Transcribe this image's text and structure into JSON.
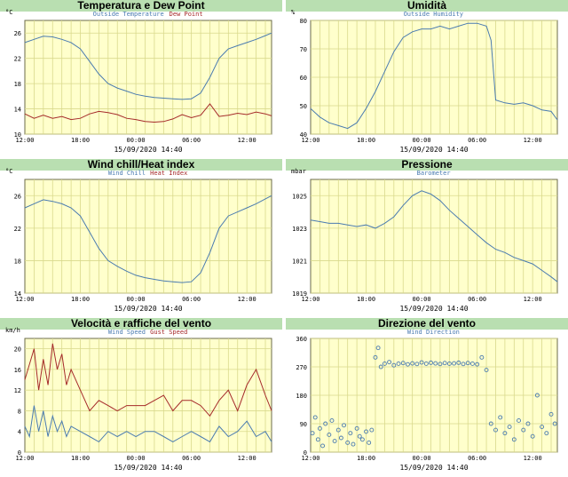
{
  "panels": [
    {
      "title": "Temperatura e Dew Point"
    },
    {
      "title": "Umidità"
    },
    {
      "title": "Wind chill/Heat index"
    },
    {
      "title": "Pressione"
    },
    {
      "title": "Velocità e raffiche del vento"
    },
    {
      "title": "Direzione del vento"
    }
  ],
  "chart_data": [
    {
      "type": "line",
      "title": "Temperatura e Dew Point",
      "ylabel": "°C",
      "legend": [
        "Outside Temperature",
        "Dew Point"
      ],
      "xlabel": "15/09/2020 14:40",
      "x_ticks": [
        "12:00",
        "18:00",
        "00:00",
        "06:00",
        "12:00"
      ],
      "y_ticks": [
        10,
        14,
        18,
        22,
        26
      ],
      "xlim": [
        0,
        26.67
      ],
      "ylim": [
        10,
        28
      ],
      "series": [
        {
          "name": "Outside Temperature",
          "color": "#4a7bb0",
          "x": [
            0,
            1,
            2,
            3,
            4,
            5,
            6,
            7,
            8,
            9,
            10,
            11,
            12,
            13,
            14,
            15,
            16,
            17,
            18,
            19,
            20,
            21,
            22,
            23,
            24,
            25,
            26,
            26.67
          ],
          "y": [
            24.5,
            25,
            25.5,
            25.4,
            25,
            24.5,
            23.5,
            21.5,
            19.5,
            18,
            17.3,
            16.8,
            16.3,
            16,
            15.8,
            15.7,
            15.6,
            15.5,
            15.6,
            16.5,
            19,
            22,
            23.5,
            24,
            24.5,
            25,
            25.6,
            26
          ]
        },
        {
          "name": "Dew Point",
          "color": "#a52a2a",
          "x": [
            0,
            1,
            2,
            3,
            4,
            5,
            6,
            7,
            8,
            9,
            10,
            11,
            12,
            13,
            14,
            15,
            16,
            17,
            18,
            19,
            20,
            21,
            22,
            23,
            24,
            25,
            26,
            26.67
          ],
          "y": [
            13.2,
            12.5,
            13,
            12.5,
            12.8,
            12.3,
            12.5,
            13.2,
            13.6,
            13.4,
            13.1,
            12.5,
            12.3,
            12,
            11.9,
            12,
            12.4,
            13.1,
            12.6,
            13,
            14.8,
            12.8,
            13,
            13.3,
            13.1,
            13.5,
            13.2,
            12.9
          ]
        }
      ]
    },
    {
      "type": "line",
      "title": "Umidità",
      "ylabel": "%",
      "legend": [
        "Outside Humidity"
      ],
      "xlabel": "15/09/2020 14:40",
      "x_ticks": [
        "12:00",
        "18:00",
        "00:00",
        "06:00",
        "12:00"
      ],
      "y_ticks": [
        40,
        50,
        60,
        70,
        80
      ],
      "xlim": [
        0,
        26.67
      ],
      "ylim": [
        40,
        80
      ],
      "series": [
        {
          "name": "Outside Humidity",
          "color": "#4a7bb0",
          "x": [
            0,
            1,
            2,
            3,
            4,
            5,
            6,
            7,
            8,
            9,
            10,
            11,
            12,
            13,
            14,
            15,
            16,
            17,
            18,
            19,
            19.5,
            20,
            21,
            22,
            23,
            24,
            25,
            26,
            26.67
          ],
          "y": [
            49,
            46,
            44,
            43,
            42,
            44,
            49,
            55,
            62,
            69,
            74,
            76,
            77,
            77,
            78,
            77,
            78,
            79,
            79,
            78,
            73,
            52,
            51,
            50.5,
            51,
            50,
            48.5,
            48,
            45
          ]
        }
      ]
    },
    {
      "type": "line",
      "title": "Wind chill/Heat index",
      "ylabel": "°C",
      "legend": [
        "Wind Chill",
        "Heat Index"
      ],
      "xlabel": "15/09/2020 14:40",
      "x_ticks": [
        "12:00",
        "18:00",
        "00:00",
        "06:00",
        "12:00"
      ],
      "y_ticks": [
        14,
        18,
        22,
        26
      ],
      "xlim": [
        0,
        26.67
      ],
      "ylim": [
        14,
        28
      ],
      "series": [
        {
          "name": "Wind Chill",
          "color": "#4a7bb0",
          "x": [
            0,
            1,
            2,
            3,
            4,
            5,
            6,
            7,
            8,
            9,
            10,
            11,
            12,
            13,
            14,
            15,
            16,
            17,
            18,
            19,
            20,
            21,
            22,
            23,
            24,
            25,
            26,
            26.67
          ],
          "y": [
            24.5,
            25,
            25.5,
            25.3,
            25,
            24.5,
            23.5,
            21.5,
            19.5,
            18,
            17.3,
            16.7,
            16.2,
            15.9,
            15.7,
            15.5,
            15.4,
            15.3,
            15.4,
            16.5,
            19,
            22,
            23.5,
            24,
            24.5,
            25,
            25.6,
            26
          ]
        }
      ]
    },
    {
      "type": "line",
      "title": "Pressione",
      "ylabel": "mbar",
      "legend": [
        "Barometer"
      ],
      "xlabel": "15/09/2020 14:40",
      "x_ticks": [
        "12:00",
        "18:00",
        "00:00",
        "06:00",
        "12:00"
      ],
      "y_ticks": [
        1019,
        1021,
        1023,
        1025
      ],
      "xlim": [
        0,
        26.67
      ],
      "ylim": [
        1019,
        1026
      ],
      "series": [
        {
          "name": "Barometer",
          "color": "#4a7bb0",
          "x": [
            0,
            1,
            2,
            3,
            4,
            5,
            6,
            7,
            8,
            9,
            10,
            11,
            12,
            13,
            14,
            15,
            16,
            17,
            18,
            19,
            20,
            21,
            22,
            23,
            24,
            25,
            26,
            26.67
          ],
          "y": [
            1023.5,
            1023.4,
            1023.3,
            1023.3,
            1023.2,
            1023.1,
            1023.2,
            1023,
            1023.3,
            1023.7,
            1024.4,
            1025,
            1025.3,
            1025.1,
            1024.7,
            1024.1,
            1023.6,
            1023.1,
            1022.6,
            1022.1,
            1021.7,
            1021.5,
            1021.2,
            1021,
            1020.8,
            1020.4,
            1020,
            1019.7
          ]
        }
      ]
    },
    {
      "type": "line",
      "title": "Velocità e raffiche del vento",
      "ylabel": "km/h",
      "legend": [
        "Wind Speed",
        "Gust Speed"
      ],
      "xlabel": "15/09/2020 14:40",
      "x_ticks": [
        "12:00",
        "18:00",
        "00:00",
        "06:00",
        "12:00"
      ],
      "y_ticks": [
        0,
        4,
        8,
        12,
        16,
        20
      ],
      "xlim": [
        0,
        26.67
      ],
      "ylim": [
        0,
        22
      ],
      "series": [
        {
          "name": "Wind Speed",
          "color": "#4a7bb0",
          "x": [
            0,
            0.5,
            1,
            1.5,
            2,
            2.5,
            3,
            3.5,
            4,
            4.5,
            5,
            6,
            7,
            8,
            9,
            10,
            11,
            12,
            13,
            14,
            15,
            16,
            17,
            18,
            19,
            20,
            21,
            22,
            23,
            24,
            25,
            26,
            26.67
          ],
          "y": [
            5,
            3,
            9,
            4,
            8,
            3,
            7,
            4,
            6,
            3,
            5,
            4,
            3,
            2,
            4,
            3,
            4,
            3,
            4,
            4,
            3,
            2,
            3,
            4,
            3,
            2,
            5,
            3,
            4,
            6,
            3,
            4,
            2
          ]
        },
        {
          "name": "Gust Speed",
          "color": "#a52a2a",
          "x": [
            0,
            0.5,
            1,
            1.5,
            2,
            2.5,
            3,
            3.5,
            4,
            4.5,
            5,
            6,
            7,
            8,
            9,
            10,
            11,
            12,
            13,
            14,
            15,
            16,
            17,
            18,
            19,
            20,
            21,
            22,
            23,
            24,
            25,
            26,
            26.67
          ],
          "y": [
            14,
            17,
            20,
            12,
            18,
            13,
            21,
            16,
            19,
            13,
            16,
            12,
            8,
            10,
            9,
            8,
            9,
            9,
            9,
            10,
            11,
            8,
            10,
            10,
            9,
            7,
            10,
            12,
            8,
            13,
            16,
            11,
            8
          ]
        }
      ]
    },
    {
      "type": "scatter",
      "title": "Direzione del vento",
      "legend": [
        "Wind Direction"
      ],
      "xlabel": "15/09/2020 14:40",
      "x_ticks": [
        "12:00",
        "18:00",
        "00:00",
        "06:00",
        "12:00"
      ],
      "y_ticks": [
        0,
        90,
        180,
        270,
        360
      ],
      "xlim": [
        0,
        26.67
      ],
      "ylim": [
        0,
        360
      ],
      "series": [
        {
          "name": "Wind Direction",
          "color": "#4a7bb0",
          "x": [
            0.2,
            0.5,
            0.8,
            1,
            1.3,
            1.6,
            2,
            2.3,
            2.6,
            3,
            3.3,
            3.6,
            4,
            4.3,
            4.6,
            5,
            5.3,
            5.6,
            6,
            6.3,
            6.6,
            7,
            7.3,
            7.6,
            8,
            8.5,
            9,
            9.5,
            10,
            10.5,
            11,
            11.5,
            12,
            12.5,
            13,
            13.5,
            14,
            14.5,
            15,
            15.5,
            16,
            16.5,
            17,
            17.5,
            18,
            18.5,
            19,
            19.5,
            20,
            20.5,
            21,
            21.5,
            22,
            22.5,
            23,
            23.5,
            24,
            24.5,
            25,
            25.5,
            26,
            26.4
          ],
          "y": [
            60,
            110,
            40,
            75,
            20,
            90,
            55,
            100,
            35,
            70,
            45,
            85,
            30,
            60,
            25,
            75,
            50,
            40,
            65,
            30,
            70,
            300,
            330,
            270,
            280,
            285,
            275,
            280,
            282,
            278,
            281,
            279,
            284,
            280,
            283,
            281,
            279,
            282,
            280,
            281,
            283,
            279,
            282,
            280,
            278,
            300,
            260,
            90,
            70,
            110,
            60,
            80,
            40,
            100,
            70,
            90,
            50,
            180,
            80,
            60,
            120,
            90
          ]
        }
      ]
    }
  ]
}
